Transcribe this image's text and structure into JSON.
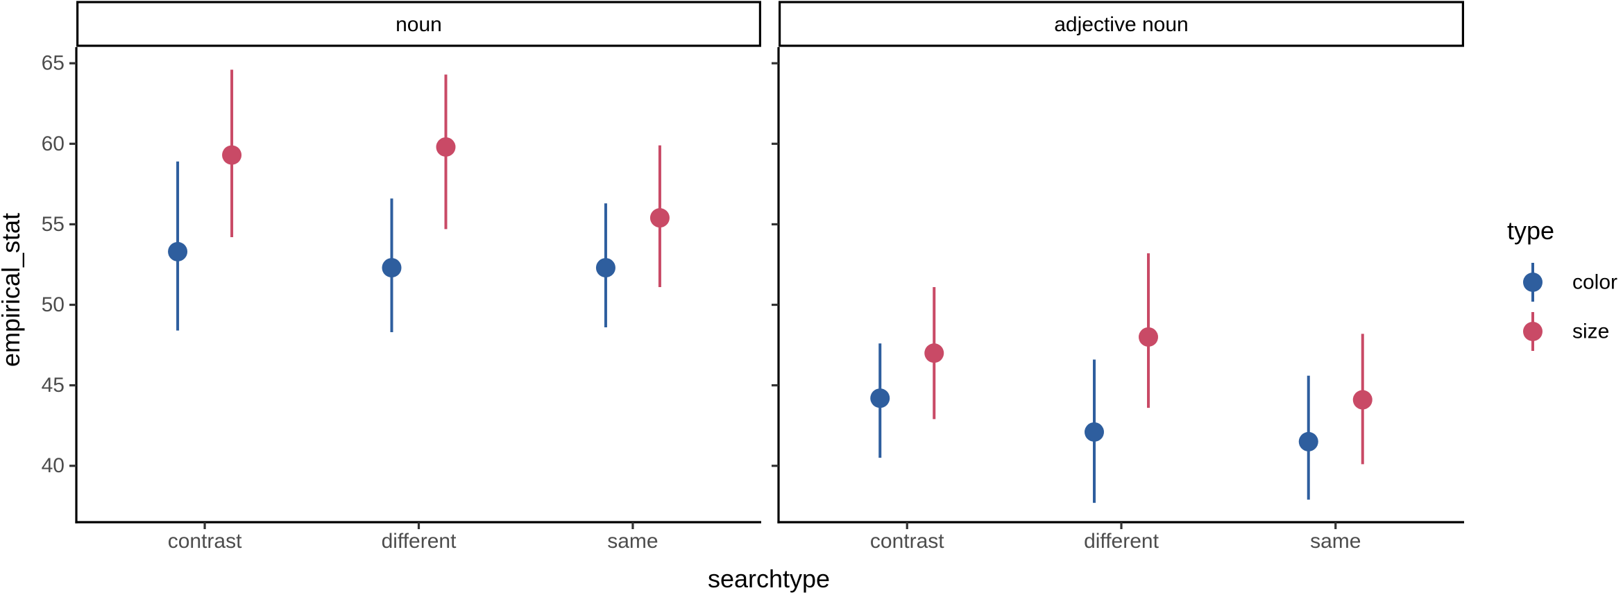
{
  "chart_data": {
    "type": "scatter",
    "xlabel": "searchtype",
    "ylabel": "empirical_stat",
    "ylim": [
      36.5,
      66
    ],
    "yticks": [
      40,
      45,
      50,
      55,
      60,
      65
    ],
    "categories": [
      "contrast",
      "different",
      "same"
    ],
    "facets": [
      {
        "label": "noun",
        "series": [
          {
            "name": "color",
            "color": "#2E5E9E",
            "values": [
              53.3,
              52.3,
              52.3
            ],
            "lower": [
              48.4,
              48.3,
              48.6
            ],
            "upper": [
              58.9,
              56.6,
              56.3
            ]
          },
          {
            "name": "size",
            "color": "#C94A66",
            "values": [
              59.3,
              59.8,
              55.4
            ],
            "lower": [
              54.2,
              54.7,
              51.1
            ],
            "upper": [
              64.6,
              64.3,
              59.9
            ]
          }
        ]
      },
      {
        "label": "adjective noun",
        "series": [
          {
            "name": "color",
            "color": "#2E5E9E",
            "values": [
              44.2,
              42.1,
              41.5
            ],
            "lower": [
              40.5,
              37.7,
              37.9
            ],
            "upper": [
              47.6,
              46.6,
              45.6
            ]
          },
          {
            "name": "size",
            "color": "#C94A66",
            "values": [
              47.0,
              48.0,
              44.1
            ],
            "lower": [
              42.9,
              43.6,
              40.1
            ],
            "upper": [
              51.1,
              53.2,
              48.2
            ]
          }
        ]
      }
    ],
    "legend": {
      "title": "type",
      "position": "right",
      "items": [
        {
          "label": "color",
          "color": "#2E5E9E"
        },
        {
          "label": "size",
          "color": "#C94A66"
        }
      ]
    },
    "grid": false
  }
}
